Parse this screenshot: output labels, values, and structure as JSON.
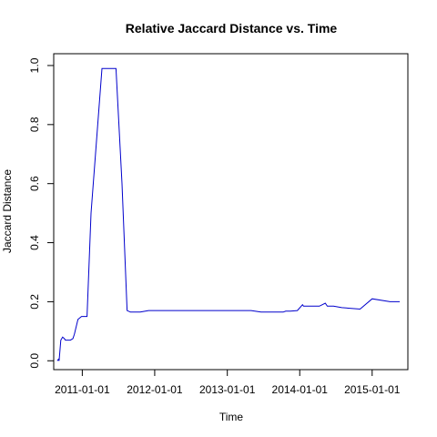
{
  "chart_data": {
    "type": "line",
    "title": "Relative Jaccard Distance vs. Time",
    "xlabel": "Time",
    "ylabel": "Jaccard Distance",
    "xlim": [
      "2010-08-10",
      "2015-06-30"
    ],
    "ylim": [
      -0.03,
      1.04
    ],
    "x_ticks": [
      "2011-01-01",
      "2012-01-01",
      "2013-01-01",
      "2014-01-01",
      "2015-01-01"
    ],
    "y_ticks": [
      0.0,
      0.2,
      0.4,
      0.6,
      0.8,
      1.0
    ],
    "y_tick_labels": [
      "0.0",
      "0.2",
      "0.4",
      "0.6",
      "0.8",
      "1.0"
    ],
    "grid": false,
    "legend": "none",
    "series": [
      {
        "color": "#0000cc",
        "x": [
          "2010-08-28",
          "2010-09-03",
          "2010-09-06",
          "2010-09-15",
          "2010-09-24",
          "2010-10-02",
          "2010-10-08",
          "2010-11-02",
          "2010-11-15",
          "2010-11-22",
          "2010-12-10",
          "2010-12-28",
          "2011-01-25",
          "2011-02-14",
          "2011-04-10",
          "2011-06-20",
          "2011-07-20",
          "2011-08-15",
          "2011-09-01",
          "2011-09-20",
          "2011-10-20",
          "2011-12-01",
          "2012-06-01",
          "2013-01-01",
          "2013-03-01",
          "2013-05-01",
          "2013-06-20",
          "2013-08-01",
          "2013-09-01",
          "2013-10-10",
          "2013-10-22",
          "2013-11-15",
          "2013-12-20",
          "2014-01-15",
          "2014-01-20",
          "2014-01-25",
          "2014-03-01",
          "2014-04-10",
          "2014-05-10",
          "2014-05-20",
          "2014-06-20",
          "2014-08-01",
          "2014-11-01",
          "2015-01-01",
          "2015-04-01",
          "2015-05-20"
        ],
        "y": [
          0.0,
          0.005,
          0.0,
          0.07,
          0.08,
          0.075,
          0.07,
          0.07,
          0.075,
          0.09,
          0.14,
          0.15,
          0.15,
          0.5,
          0.99,
          0.99,
          0.6,
          0.17,
          0.165,
          0.165,
          0.165,
          0.17,
          0.17,
          0.17,
          0.17,
          0.17,
          0.165,
          0.165,
          0.165,
          0.165,
          0.168,
          0.168,
          0.17,
          0.19,
          0.185,
          0.185,
          0.185,
          0.185,
          0.195,
          0.185,
          0.185,
          0.18,
          0.175,
          0.21,
          0.2,
          0.2
        ]
      }
    ]
  }
}
